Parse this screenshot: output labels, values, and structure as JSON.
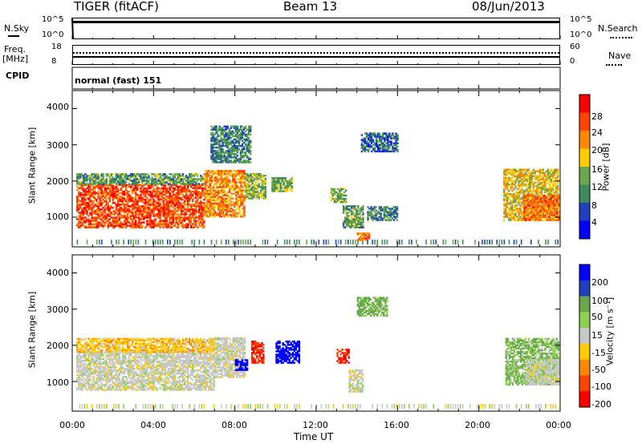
{
  "header": {
    "radar": "TIGER (fitACF)",
    "beam": "Beam 13",
    "date": "08/Jun/2013"
  },
  "strips": {
    "nsky_label": "N.Sky",
    "nsky_ticks": [
      "10^5",
      "10^0"
    ],
    "nsearch_label": "N.Search",
    "nsearch_ticks": [
      "10^5",
      "10^0"
    ],
    "freq_label": "Freq.",
    "freq_unit": "[MHz]",
    "freq_ticks": [
      "18",
      "8"
    ],
    "nave_label": "Nave",
    "nave_ticks": [
      "60",
      "0"
    ],
    "cpid_label": "CPID",
    "cpid_text": "normal (fast) 151"
  },
  "chart_data": [
    {
      "type": "heatmap",
      "name": "power",
      "ylabel": "Slant Range [km]",
      "yticks": [
        "4000",
        "3000",
        "2000",
        "1000"
      ],
      "xlabel": "Time UT",
      "xticks": [
        "00:00",
        "04:00",
        "08:00",
        "12:00",
        "16:00",
        "20:00",
        "00:00"
      ],
      "colorbar_label": "Power [dB]",
      "colorbar_ticks": [
        "28",
        "24",
        "20",
        "16",
        "12",
        "8",
        "4"
      ],
      "colorbar_colors": [
        "#ff0000",
        "#ff4400",
        "#ff8800",
        "#ffcc00",
        "#6aa84f",
        "#3d8a5a",
        "#2040c0",
        "#0000ff"
      ],
      "x_range_hours": [
        0,
        24
      ],
      "y_range_km": [
        180,
        4500
      ],
      "regions": [
        {
          "t0": 0.2,
          "t1": 6.5,
          "r0": 700,
          "r1": 1900,
          "level": 24
        },
        {
          "t0": 0.2,
          "t1": 6.5,
          "r0": 1900,
          "r1": 2200,
          "level": 10
        },
        {
          "t0": 6.5,
          "t1": 8.5,
          "r0": 1000,
          "r1": 2300,
          "level": 20
        },
        {
          "t0": 8.5,
          "t1": 9.5,
          "r0": 1500,
          "r1": 2200,
          "level": 12
        },
        {
          "t0": 9.8,
          "t1": 10.8,
          "r0": 1700,
          "r1": 2100,
          "level": 12
        },
        {
          "t0": 6.8,
          "t1": 8.8,
          "r0": 2500,
          "r1": 3500,
          "level": 8
        },
        {
          "t0": 12.7,
          "t1": 13.5,
          "r0": 1400,
          "r1": 1800,
          "level": 12
        },
        {
          "t0": 13.3,
          "t1": 14.3,
          "r0": 700,
          "r1": 1300,
          "level": 10
        },
        {
          "t0": 14.2,
          "t1": 16.0,
          "r0": 2800,
          "r1": 3300,
          "level": 6
        },
        {
          "t0": 14.0,
          "t1": 14.6,
          "r0": 350,
          "r1": 550,
          "level": 22
        },
        {
          "t0": 14.5,
          "t1": 16.0,
          "r0": 900,
          "r1": 1300,
          "level": 8
        },
        {
          "t0": 21.2,
          "t1": 23.9,
          "r0": 900,
          "r1": 2300,
          "level": 16
        },
        {
          "t0": 22.2,
          "t1": 23.9,
          "r0": 900,
          "r1": 1600,
          "level": 22
        }
      ]
    },
    {
      "type": "heatmap",
      "name": "velocity",
      "ylabel": "Slant Range [km]",
      "yticks": [
        "4000",
        "3000",
        "2000",
        "1000"
      ],
      "xlabel": "Time UT",
      "xticks": [
        "00:00",
        "04:00",
        "08:00",
        "12:00",
        "16:00",
        "20:00",
        "00:00"
      ],
      "colorbar_label": "Velocity [m s⁻¹]",
      "colorbar_ticks": [
        "200",
        "100",
        "50",
        "15",
        "-15",
        "-50",
        "-100",
        "-200"
      ],
      "colorbar_colors": [
        "#0000ff",
        "#2040c0",
        "#6aa84f",
        "#90d050",
        "#c8c8c8",
        "#ffcc00",
        "#ff8800",
        "#ff4400",
        "#ff0000"
      ],
      "x_range_hours": [
        0,
        24
      ],
      "y_range_km": [
        180,
        4500
      ],
      "regions": [
        {
          "t0": 0.2,
          "t1": 7.0,
          "r0": 750,
          "r1": 1800,
          "level": 0
        },
        {
          "t0": 0.2,
          "t1": 7.0,
          "r0": 1800,
          "r1": 2200,
          "level": -30
        },
        {
          "t0": 7.0,
          "t1": 8.5,
          "r0": 1100,
          "r1": 2200,
          "level": 0
        },
        {
          "t0": 8.0,
          "t1": 8.6,
          "r0": 1300,
          "r1": 1600,
          "level": 200
        },
        {
          "t0": 8.8,
          "t1": 9.4,
          "r0": 1500,
          "r1": 2100,
          "level": -150
        },
        {
          "t0": 10.0,
          "t1": 11.2,
          "r0": 1500,
          "r1": 2100,
          "level": 220
        },
        {
          "t0": 13.0,
          "t1": 13.6,
          "r0": 1500,
          "r1": 1900,
          "level": -150
        },
        {
          "t0": 13.6,
          "t1": 14.3,
          "r0": 700,
          "r1": 1300,
          "level": 0
        },
        {
          "t0": 14.0,
          "t1": 15.5,
          "r0": 2800,
          "r1": 3300,
          "level": 40
        },
        {
          "t0": 21.3,
          "t1": 23.9,
          "r0": 900,
          "r1": 2200,
          "level": 30
        },
        {
          "t0": 22.3,
          "t1": 23.9,
          "r0": 900,
          "r1": 1600,
          "level": 0
        }
      ]
    }
  ]
}
